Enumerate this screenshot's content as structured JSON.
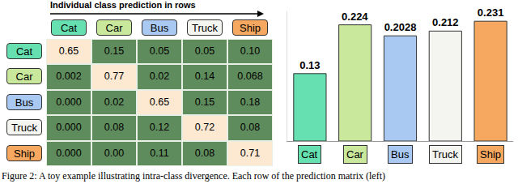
{
  "header": "Individual class prediction in rows",
  "matrix": {
    "columns": [
      "Cat",
      "Car",
      "Bus",
      "Truck",
      "Ship"
    ],
    "rows": [
      {
        "label": "Cat",
        "values": [
          "0.65",
          "0.15",
          "0.05",
          "0.05",
          "0.10"
        ]
      },
      {
        "label": "Car",
        "values": [
          "0.002",
          "0.77",
          "0.02",
          "0.14",
          "0.068"
        ]
      },
      {
        "label": "Bus",
        "values": [
          "0.000",
          "0.02",
          "0.65",
          "0.15",
          "0.18"
        ]
      },
      {
        "label": "Truck",
        "values": [
          "0.000",
          "0.08",
          "0.12",
          "0.72",
          "0.08"
        ]
      },
      {
        "label": "Ship",
        "values": [
          "0.000",
          "0.00",
          "0.11",
          "0.08",
          "0.71"
        ]
      }
    ]
  },
  "chart_data": {
    "type": "bar",
    "categories": [
      "Cat",
      "Car",
      "Bus",
      "Truck",
      "Ship"
    ],
    "values": [
      0.13,
      0.224,
      0.2028,
      0.212,
      0.231
    ],
    "colors": [
      "#66e0b0",
      "#c9e89c",
      "#a9c9f2",
      "#f4f4f0",
      "#f7a860"
    ],
    "ylim": [
      0,
      0.25
    ],
    "yticks": [],
    "data_labels": true,
    "tick_labels": false,
    "grid": false
  },
  "caption": "Figure 2: A toy example illustrating intra-class divergence. Each row of the prediction matrix (left)"
}
